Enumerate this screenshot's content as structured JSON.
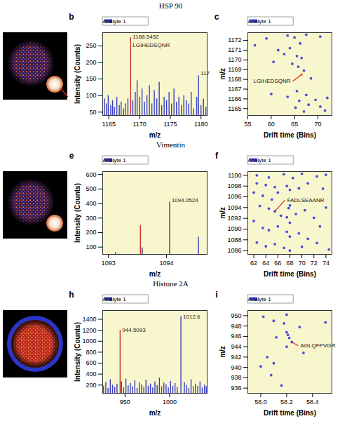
{
  "row_titles": [
    "HSP 90",
    "Vimentin",
    "Histone 2A"
  ],
  "chart_data": [
    {
      "panel": "b",
      "type": "bar",
      "xlabel": "m/z",
      "ylabel": "Intensity (Counts)",
      "xlim": [
        1164,
        1181
      ],
      "xticks": [
        1165,
        1170,
        1175,
        1180
      ],
      "ylim": [
        40,
        290
      ],
      "yticks": [
        50,
        100,
        150,
        200,
        250
      ],
      "grid": false,
      "legend": "top-left",
      "series": [
        {
          "name": "Analyte 1",
          "color": "#3a3fc8",
          "x": [
            1164.3,
            1164.6,
            1164.9,
            1165.3,
            1165.6,
            1165.9,
            1166.3,
            1166.7,
            1167.0,
            1167.4,
            1167.7,
            1168.1,
            1168.5452,
            1168.9,
            1169.3,
            1169.6,
            1170.0,
            1170.4,
            1170.8,
            1171.2,
            1171.6,
            1172.0,
            1172.4,
            1172.8,
            1173.2,
            1173.6,
            1174.0,
            1174.4,
            1174.8,
            1175.2,
            1175.6,
            1176.0,
            1176.4,
            1176.8,
            1177.2,
            1177.6,
            1178.0,
            1178.4,
            1178.8,
            1179.3,
            1179.6,
            1180.0,
            1180.4,
            1180.8
          ],
          "values": [
            90,
            75,
            100,
            70,
            85,
            65,
            95,
            70,
            80,
            60,
            75,
            90,
            275,
            85,
            110,
            145,
            95,
            120,
            80,
            100,
            130,
            75,
            115,
            90,
            140,
            70,
            95,
            85,
            110,
            75,
            120,
            80,
            95,
            70,
            100,
            85,
            75,
            110,
            60,
            95,
            160,
            70,
            90,
            65
          ],
          "colors": [
            "#3a3fc8",
            "#3a3fc8",
            "#3a3fc8",
            "#3a3fc8",
            "#3a3fc8",
            "#3a3fc8",
            "#3a3fc8",
            "#3a3fc8",
            "#3a3fc8",
            "#3a3fc8",
            "#3a3fc8",
            "#3a3fc8",
            "#d0312a",
            "#3a3fc8",
            "#3a3fc8",
            "#3a3fc8",
            "#3a3fc8",
            "#3a3fc8",
            "#3a3fc8",
            "#3a3fc8",
            "#3a3fc8",
            "#3a3fc8",
            "#3a3fc8",
            "#3a3fc8",
            "#3a3fc8",
            "#3a3fc8",
            "#3a3fc8",
            "#3a3fc8",
            "#3a3fc8",
            "#3a3fc8",
            "#3a3fc8",
            "#3a3fc8",
            "#3a3fc8",
            "#3a3fc8",
            "#3a3fc8",
            "#3a3fc8",
            "#3a3fc8",
            "#3a3fc8",
            "#3a3fc8",
            "#3a3fc8",
            "#3a3fc8",
            "#3a3fc8",
            "#3a3fc8",
            "#3a3fc8"
          ]
        }
      ],
      "annotations": [
        {
          "text": "1168.5452",
          "x": 1168.5452,
          "y": 278
        },
        {
          "text": "LGIHEDSQNR",
          "x": 1168.5452,
          "y": 252
        },
        {
          "text": "117",
          "x": 1179.6,
          "y": 168
        }
      ]
    },
    {
      "panel": "c",
      "type": "scatter",
      "xlabel": "Drift time (Bins)",
      "ylabel": "m/z",
      "xlim": [
        55,
        73
      ],
      "xticks": [
        55,
        60,
        65,
        70
      ],
      "ylim": [
        1164.3,
        1172.8
      ],
      "yticks": [
        1165,
        1166,
        1167,
        1168,
        1169,
        1170,
        1171,
        1172
      ],
      "grid": false,
      "legend": "top-left",
      "series": [
        {
          "name": "Analyte 1",
          "color": "#4a4fd8",
          "x": [
            63.5,
            65,
            66.2,
            67.5,
            70.5,
            64,
            61.5,
            62.8,
            65.5,
            66.5,
            60.5,
            64.5,
            65.8,
            67,
            66.5,
            68.5,
            65.5,
            67.5,
            63.5,
            66,
            69.5,
            70.5,
            71.5,
            65.2,
            67,
            68,
            72,
            60,
            56.5,
            59
          ],
          "values": [
            1172.5,
            1172.3,
            1171.7,
            1172.6,
            1172.4,
            1171.2,
            1171.0,
            1170.6,
            1170.4,
            1170.2,
            1169.8,
            1169.6,
            1169.3,
            1168.9,
            1168.5,
            1168.1,
            1166.8,
            1166.4,
            1166.2,
            1165.8,
            1165.9,
            1165.2,
            1164.8,
            1165.1,
            1164.7,
            1165.4,
            1166.1,
            1166.5,
            1171.5,
            1172.2
          ],
          "colors": [
            "#4a4fd8",
            "#4a4fd8",
            "#4a4fd8",
            "#4a4fd8",
            "#4a4fd8",
            "#4a4fd8",
            "#4a4fd8",
            "#4a4fd8",
            "#4a4fd8",
            "#4a4fd8",
            "#4a4fd8",
            "#4a4fd8",
            "#4a4fd8",
            "#4a4fd8",
            "#f0a040",
            "#4a4fd8",
            "#4a4fd8",
            "#4a4fd8",
            "#4a4fd8",
            "#4a4fd8",
            "#4a4fd8",
            "#4a4fd8",
            "#4a4fd8",
            "#4a4fd8",
            "#4a4fd8",
            "#4a4fd8",
            "#4a4fd8",
            "#4a4fd8",
            "#4a4fd8",
            "#4a4fd8"
          ]
        }
      ],
      "annotations": [
        {
          "text": "LGIHEDSQNR",
          "x": 64.6,
          "y": 1167.8,
          "to": [
            66.5,
            1168.5
          ]
        }
      ]
    },
    {
      "panel": "e",
      "type": "bar",
      "xlabel": "m/z",
      "ylabel": "Intensity (Counts)",
      "xlim": [
        1092.9,
        1094.7
      ],
      "xticks": [
        1093,
        1094
      ],
      "ylim": [
        50,
        620
      ],
      "yticks": [
        100,
        200,
        300,
        400,
        500,
        600
      ],
      "grid": false,
      "legend": "top-left",
      "series": [
        {
          "name": "Analyte 1",
          "color": "#3a3fc8",
          "x": [
            1093.12,
            1093.55,
            1093.58,
            1094.0524,
            1094.55
          ],
          "values": [
            62,
            250,
            95,
            410,
            170
          ],
          "colors": [
            "#3a3fc8",
            "#d0312a",
            "#14145a",
            "#3a3fc8",
            "#3a3fc8"
          ]
        }
      ],
      "annotations": [
        {
          "text": "1094.0524",
          "x": 1094.0524,
          "y": 420
        }
      ]
    },
    {
      "panel": "f",
      "type": "scatter",
      "xlabel": "Drift time (Bins)",
      "ylabel": "m/z",
      "xlim": [
        61,
        75
      ],
      "xticks": [
        62,
        64,
        66,
        68,
        70,
        72,
        74
      ],
      "ylim": [
        1085.3,
        1100.7
      ],
      "yticks": [
        1086,
        1088,
        1090,
        1092,
        1094,
        1096,
        1098,
        1100
      ],
      "grid": false,
      "legend": "top-left",
      "series": [
        {
          "name": "Analyte 1",
          "color": "#4a4fd8",
          "x": [
            67,
            68.5,
            70,
            72.5,
            74,
            62.5,
            64,
            65.5,
            67.5,
            68,
            69.5,
            71,
            73.5,
            62,
            63.5,
            65,
            66,
            67.8,
            68,
            63,
            64.5,
            65.5,
            66.5,
            67.5,
            68,
            69,
            70.5,
            72,
            74,
            62,
            63.5,
            64.5,
            66,
            67.5,
            68,
            69.5,
            71,
            73,
            62.5,
            64,
            65.5,
            67,
            68,
            70,
            72.5,
            74.5,
            62.5,
            64.5
          ],
          "values": [
            1100.2,
            1099.5,
            1100.3,
            1099.8,
            1100.1,
            1098.5,
            1098.2,
            1097.8,
            1098,
            1097.3,
            1097.6,
            1098.5,
            1097.5,
            1096.8,
            1096.2,
            1095.5,
            1096.8,
            1093.9,
            1094.4,
            1094.3,
            1093.8,
            1093.3,
            1092.5,
            1092.2,
            1091.2,
            1092.8,
            1093.5,
            1092.1,
            1094,
            1091.5,
            1090.2,
            1089.8,
            1090.5,
            1089.5,
            1088.6,
            1089.2,
            1088.2,
            1090.5,
            1087.5,
            1086.8,
            1087.2,
            1086.5,
            1086,
            1086.7,
            1087.4,
            1086.2,
            1100.0,
            1099.6
          ]
        }
      ],
      "annotations": [
        {
          "text": "FADLSEAANR",
          "x": 67.2,
          "y": 1095.4,
          "to": [
            65.5,
            1093.3
          ]
        }
      ]
    },
    {
      "panel": "h",
      "type": "bar",
      "xlabel": "m/z",
      "ylabel": "Intensity (Counts)",
      "xlim": [
        925,
        1042
      ],
      "xticks": [
        950,
        1000
      ],
      "ylim": [
        50,
        1560
      ],
      "yticks": [
        200,
        400,
        600,
        800,
        1000,
        1200,
        1400
      ],
      "grid": false,
      "legend": "top-left",
      "series": [
        {
          "name": "Analyte 1",
          "color": "#3a3fc8",
          "x": [
            926,
            928.5,
            931,
            933.5,
            936,
            938.5,
            941,
            944.5093,
            946,
            948.5,
            951,
            953.5,
            956,
            958.5,
            961,
            963.5,
            966,
            968.5,
            971,
            973.5,
            976,
            978.5,
            981,
            983.5,
            986,
            988.5,
            991,
            993.5,
            996,
            998.5,
            1001,
            1003.5,
            1006,
            1008.5,
            1012.6,
            1016.5,
            1019,
            1021.5,
            1024,
            1026.5,
            1029,
            1031.5,
            1034,
            1036.5,
            1039,
            1041
          ],
          "values": [
            180,
            250,
            140,
            300,
            200,
            160,
            220,
            1200,
            260,
            150,
            310,
            190,
            230,
            170,
            280,
            140,
            240,
            200,
            160,
            290,
            180,
            220,
            150,
            260,
            190,
            330,
            170,
            240,
            210,
            150,
            270,
            180,
            230,
            160,
            1450,
            250,
            190,
            140,
            300,
            170,
            220,
            180,
            260,
            150,
            200,
            170
          ],
          "colors": [
            "#3a3fc8",
            "#3a3fc8",
            "#3a3fc8",
            "#3a3fc8",
            "#3a3fc8",
            "#3a3fc8",
            "#3a3fc8",
            "#d0312a",
            "#3a3fc8",
            "#3a3fc8",
            "#3a3fc8",
            "#3a3fc8",
            "#3a3fc8",
            "#3a3fc8",
            "#3a3fc8",
            "#3a3fc8",
            "#3a3fc8",
            "#3a3fc8",
            "#3a3fc8",
            "#3a3fc8",
            "#3a3fc8",
            "#3a3fc8",
            "#3a3fc8",
            "#3a3fc8",
            "#3a3fc8",
            "#3a3fc8",
            "#3a3fc8",
            "#3a3fc8",
            "#3a3fc8",
            "#3a3fc8",
            "#3a3fc8",
            "#3a3fc8",
            "#3a3fc8",
            "#3a3fc8",
            "#3a3fc8",
            "#3a3fc8",
            "#3a3fc8",
            "#3a3fc8",
            "#3a3fc8",
            "#3a3fc8",
            "#3a3fc8",
            "#3a3fc8",
            "#3a3fc8",
            "#3a3fc8",
            "#3a3fc8",
            "#3a3fc8"
          ]
        }
      ],
      "annotations": [
        {
          "text": "944.5093",
          "x": 944.5093,
          "y": 1200
        },
        {
          "text": "1012.6",
          "x": 1012.6,
          "y": 1450
        }
      ]
    },
    {
      "panel": "i",
      "type": "scatter",
      "xlabel": "Drift time (Bins)",
      "ylabel": "m/z",
      "xlim": [
        57.9,
        58.55
      ],
      "xticks": [
        {
          "value": 58,
          "label": "58.0"
        },
        58.2,
        58.4
      ],
      "ylim": [
        935,
        951
      ],
      "yticks": [
        936,
        938,
        940,
        942,
        944,
        946,
        948,
        950
      ],
      "grid": false,
      "legend": "top-left",
      "series": [
        {
          "name": "Analyte 1",
          "color": "#4a4fd8",
          "x": [
            58.2,
            58.1,
            58.18,
            58.3,
            58.5,
            58.2,
            58.21,
            58.22,
            58.24,
            58.2,
            58.12,
            58.05,
            58.1,
            58.0,
            58.08,
            58.16,
            58.33,
            58.02
          ],
          "values": [
            950.2,
            949,
            948.5,
            947.8,
            948.7,
            946.8,
            946.3,
            945.7,
            944.9,
            944,
            945.8,
            942,
            940.8,
            940.2,
            938.5,
            936.5,
            942.8,
            949.8
          ]
        }
      ],
      "annotations": [
        {
          "text": "AGLQFPVGR",
          "x": 58.29,
          "y": 944.2,
          "to": [
            58.24,
            944.9
          ]
        }
      ]
    }
  ]
}
